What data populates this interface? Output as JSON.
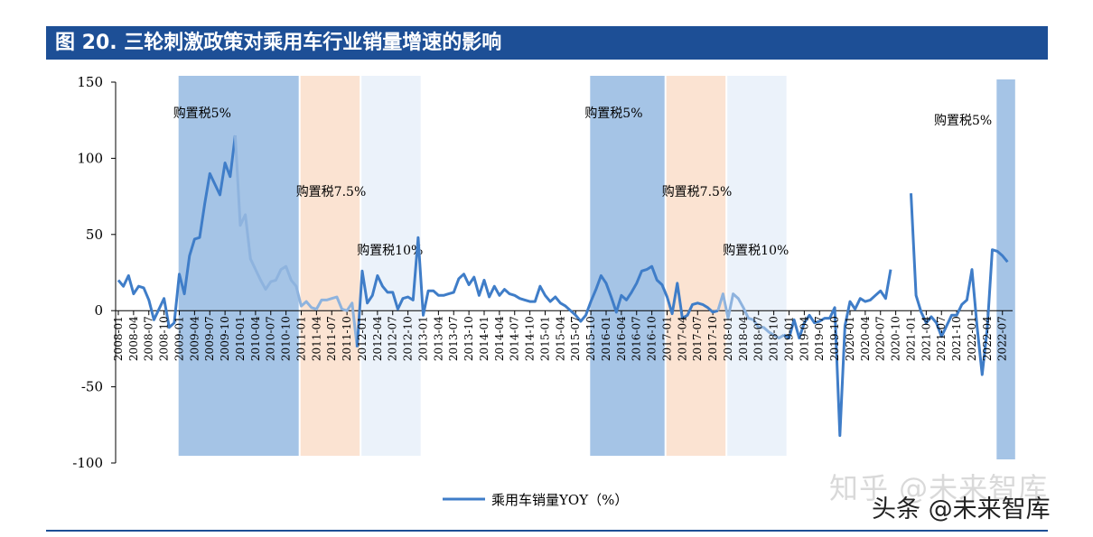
{
  "title": "图 20. 三轮刺激政策对乘用车行业销量增速的影响",
  "watermark": {
    "line1": "知乎 @未来智库",
    "line2": "头条 @未来智库"
  },
  "colors": {
    "title_bg": "#1d4f96",
    "series": "#3f7dc8",
    "band_5": "#a5c4e6",
    "band_75": "#fbe3d2",
    "band_10": "#ebf2fa",
    "axis": "#000000"
  },
  "chart_data": {
    "type": "line",
    "title": "",
    "xlabel": "",
    "ylabel": "",
    "ylim": [
      -100,
      150
    ],
    "yticks": [
      -100,
      -50,
      0,
      50,
      100,
      150
    ],
    "grid": false,
    "legend_position": "bottom-center",
    "x_start": "2008-01",
    "x_end": "2022-09",
    "x_tick_labels": [
      "2008-01",
      "2008-04",
      "2008-07",
      "2008-10",
      "2009-01",
      "2009-04",
      "2009-07",
      "2009-10",
      "2010-01",
      "2010-04",
      "2010-07",
      "2010-10",
      "2011-01",
      "2011-04",
      "2011-07",
      "2011-10",
      "2012-01",
      "2012-04",
      "2012-07",
      "2012-10",
      "2013-01",
      "2013-04",
      "2013-07",
      "2013-10",
      "2014-01",
      "2014-04",
      "2014-07",
      "2014-10",
      "2015-01",
      "2015-04",
      "2015-07",
      "2015-10",
      "2016-01",
      "2016-04",
      "2016-07",
      "2016-10",
      "2017-01",
      "2017-04",
      "2017-07",
      "2017-10",
      "2018-01",
      "2018-04",
      "2018-07",
      "2018-10",
      "2019-01",
      "2019-04",
      "2019-07",
      "2019-10",
      "2020-01",
      "2020-04",
      "2020-07",
      "2020-10",
      "2021-01",
      "2021-04",
      "2021-07",
      "2021-10",
      "2022-01",
      "2022-04",
      "2022-07"
    ],
    "series": [
      {
        "name": "乘用车销量YOY（%）",
        "values": [
          20,
          16,
          23,
          11,
          16,
          15,
          7,
          -6,
          1,
          8,
          -11,
          -8,
          24,
          11,
          36,
          47,
          48,
          70,
          90,
          83,
          76,
          97,
          88,
          115,
          56,
          63,
          34,
          27,
          20,
          14,
          19,
          20,
          27,
          29,
          20,
          16,
          3,
          6,
          2,
          1,
          7,
          7,
          8,
          9,
          1,
          0,
          5,
          -24,
          26,
          5,
          10,
          23,
          16,
          12,
          12,
          1,
          8,
          9,
          7,
          48,
          -3,
          13,
          13,
          10,
          10,
          11,
          12,
          21,
          24,
          17,
          22,
          10,
          20,
          9,
          16,
          10,
          14,
          11,
          10,
          8,
          7,
          6,
          6,
          16,
          10,
          6,
          9,
          5,
          3,
          0,
          -3,
          -7,
          -3,
          6,
          14,
          23,
          18,
          9,
          -1,
          10,
          7,
          12,
          18,
          26,
          27,
          29,
          20,
          17,
          9,
          -2,
          18,
          -5,
          -3,
          4,
          5,
          4,
          2,
          -1,
          0,
          11,
          -5,
          11,
          8,
          2,
          -5,
          -6,
          -11,
          -11,
          -14,
          -16,
          -18,
          -16,
          -18,
          -6,
          -18,
          -8,
          -3,
          -8,
          -7,
          -5,
          -5,
          2,
          -82,
          -10,
          6,
          1,
          8,
          6,
          7,
          10,
          13,
          8,
          27,
          null,
          null,
          null,
          77,
          10,
          -1,
          -8,
          -4,
          -8,
          -17,
          -10,
          -3,
          -3,
          4,
          7,
          27,
          -10,
          -42,
          -12,
          40,
          39,
          36,
          32
        ]
      }
    ],
    "bands": [
      {
        "label": "购置税5%",
        "start": "2009-01",
        "end": "2010-12"
      },
      {
        "label": "购置税7.5%",
        "start": "2011-01",
        "end": "2011-12"
      },
      {
        "label": "购置税10%",
        "start": "2012-01",
        "end": "2012-12"
      },
      {
        "label": "购置税5%",
        "start": "2015-10",
        "end": "2016-12"
      },
      {
        "label": "购置税7.5%",
        "start": "2017-01",
        "end": "2017-12"
      },
      {
        "label": "购置税10%",
        "start": "2018-01",
        "end": "2018-12"
      },
      {
        "label": "购置税5%",
        "start": "2022-06",
        "end": "2022-09"
      }
    ],
    "band_types": [
      "band_5",
      "band_75",
      "band_10",
      "band_5",
      "band_75",
      "band_10",
      "band_5"
    ],
    "faded_series_spans": [
      [
        "2010-01",
        "2010-12"
      ],
      [
        "2011-01",
        "2011-12"
      ],
      [
        "2017-12",
        "2018-12"
      ]
    ]
  }
}
